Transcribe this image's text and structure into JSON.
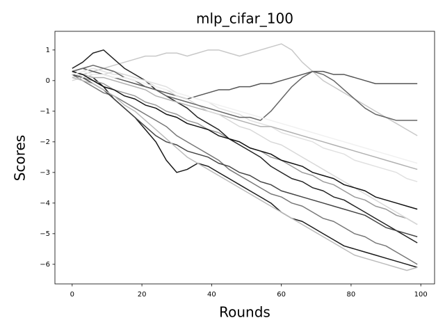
{
  "chart_data": {
    "type": "line",
    "title": "mlp_cifar_100",
    "x_label": "Rounds",
    "y_label": "Scores",
    "x": [
      0,
      3,
      6,
      9,
      12,
      15,
      18,
      21,
      24,
      27,
      30,
      33,
      36,
      39,
      42,
      45,
      48,
      51,
      54,
      57,
      60,
      63,
      66,
      69,
      72,
      75,
      78,
      81,
      84,
      87,
      90,
      93,
      96,
      99
    ],
    "xlim": [
      -4.95,
      103.95
    ],
    "xticks": [
      0,
      20,
      40,
      60,
      80,
      100
    ],
    "ylim": [
      -6.64,
      1.61
    ],
    "yticks": [
      {
        "value": -6,
        "label": "−6"
      },
      {
        "value": -5,
        "label": "−5"
      },
      {
        "value": -4,
        "label": "−4"
      },
      {
        "value": -3,
        "label": "−3"
      },
      {
        "value": -2,
        "label": "−2"
      },
      {
        "value": -1,
        "label": "−1"
      },
      0,
      1
    ],
    "grid": false,
    "series": [
      {
        "color": "#1a1a1a",
        "values": [
          0.3,
          0.2,
          0.1,
          -0.2,
          -0.6,
          -0.9,
          -1.2,
          -1.6,
          -2.0,
          -2.6,
          -3.0,
          -2.9,
          -2.7,
          -2.8,
          -3.0,
          -3.2,
          -3.4,
          -3.6,
          -3.8,
          -4.0,
          -4.3,
          -4.5,
          -4.6,
          -4.8,
          -5.0,
          -5.2,
          -5.4,
          -5.5,
          -5.6,
          -5.7,
          -5.8,
          -5.9,
          -6.0,
          -6.1
        ]
      },
      {
        "color": "#c8c8c8",
        "values": [
          0.1,
          0.2,
          0.3,
          0.4,
          0.5,
          0.6,
          0.7,
          0.8,
          0.8,
          0.9,
          0.9,
          0.8,
          0.9,
          1.0,
          1.0,
          0.9,
          0.8,
          0.9,
          1.0,
          1.1,
          1.2,
          1.0,
          0.6,
          0.3,
          0.0,
          -0.2,
          -0.4,
          -0.6,
          -0.8,
          -1.0,
          -1.2,
          -1.4,
          -1.6,
          -1.8
        ]
      },
      {
        "color": "#555555",
        "values": [
          0.3,
          0.4,
          0.3,
          0.2,
          0.1,
          0.0,
          -0.1,
          -0.2,
          -0.3,
          -0.4,
          -0.5,
          -0.6,
          -0.5,
          -0.4,
          -0.3,
          -0.3,
          -0.2,
          -0.2,
          -0.1,
          -0.1,
          0.0,
          0.1,
          0.2,
          0.3,
          0.3,
          0.2,
          0.2,
          0.1,
          0.0,
          -0.1,
          -0.1,
          -0.1,
          -0.1,
          -0.1
        ]
      },
      {
        "color": "#999999",
        "values": [
          0.2,
          0.1,
          0.0,
          -0.1,
          -0.3,
          -0.4,
          -0.5,
          -0.7,
          -0.8,
          -1.0,
          -1.1,
          -1.3,
          -1.4,
          -1.6,
          -1.7,
          -1.9,
          -2.0,
          -2.2,
          -2.3,
          -2.5,
          -2.6,
          -2.8,
          -3.0,
          -3.1,
          -3.3,
          -3.4,
          -3.6,
          -3.8,
          -3.9,
          -4.1,
          -4.2,
          -4.4,
          -4.5,
          -4.7
        ]
      },
      {
        "color": "#222222",
        "values": [
          0.4,
          0.6,
          0.9,
          1.0,
          0.7,
          0.4,
          0.2,
          0.0,
          -0.3,
          -0.5,
          -0.7,
          -0.9,
          -1.2,
          -1.4,
          -1.6,
          -1.9,
          -2.1,
          -2.3,
          -2.5,
          -2.8,
          -3.0,
          -3.2,
          -3.3,
          -3.5,
          -3.6,
          -3.8,
          -3.9,
          -4.1,
          -4.3,
          -4.5,
          -4.7,
          -4.9,
          -5.1,
          -5.3
        ]
      },
      {
        "color": "#e0e0e0",
        "values": [
          0.1,
          0.3,
          0.4,
          0.3,
          0.2,
          0.2,
          0.1,
          0.0,
          -0.1,
          -0.2,
          -0.4,
          -0.5,
          -0.6,
          -0.7,
          -0.9,
          -1.0,
          -1.1,
          -1.3,
          -1.4,
          -1.5,
          -1.7,
          -1.8,
          -1.9,
          -2.0,
          -2.2,
          -2.3,
          -2.4,
          -2.6,
          -2.7,
          -2.8,
          -2.9,
          -3.0,
          -3.2,
          -3.3
        ]
      },
      {
        "color": "#777777",
        "values": [
          0.2,
          0.0,
          -0.2,
          -0.4,
          -0.5,
          -0.7,
          -0.9,
          -1.1,
          -1.3,
          -1.5,
          -1.8,
          -2.0,
          -2.2,
          -2.4,
          -2.6,
          -2.9,
          -3.1,
          -3.3,
          -3.5,
          -3.7,
          -3.8,
          -4.0,
          -4.1,
          -4.3,
          -4.5,
          -4.6,
          -4.8,
          -5.0,
          -5.1,
          -5.3,
          -5.4,
          -5.6,
          -5.8,
          -6.0
        ]
      },
      {
        "color": "#b0b0b0",
        "values": [
          0.3,
          0.2,
          0.1,
          0.1,
          0.0,
          -0.1,
          -0.2,
          -0.3,
          -0.5,
          -0.6,
          -0.7,
          -0.8,
          -0.9,
          -1.0,
          -1.1,
          -1.2,
          -1.3,
          -1.4,
          -1.5,
          -1.5,
          -1.6,
          -1.7,
          -1.8,
          -1.9,
          -2.0,
          -2.1,
          -2.2,
          -2.3,
          -2.4,
          -2.5,
          -2.6,
          -2.7,
          -2.8,
          -2.9
        ]
      },
      {
        "color": "#444444",
        "values": [
          0.2,
          0.1,
          -0.1,
          -0.3,
          -0.6,
          -0.9,
          -1.2,
          -1.5,
          -1.8,
          -2.0,
          -2.1,
          -2.3,
          -2.4,
          -2.5,
          -2.7,
          -2.8,
          -3.0,
          -3.1,
          -3.3,
          -3.4,
          -3.6,
          -3.7,
          -3.8,
          -3.9,
          -4.0,
          -4.1,
          -4.2,
          -4.3,
          -4.4,
          -4.6,
          -4.8,
          -4.9,
          -5.0,
          -5.1
        ]
      },
      {
        "color": "#d8d8d8",
        "values": [
          0.0,
          0.1,
          0.2,
          0.2,
          0.3,
          0.2,
          0.1,
          0.0,
          -0.2,
          -0.3,
          -0.5,
          -0.6,
          -0.8,
          -1.0,
          -1.1,
          -1.3,
          -1.5,
          -1.6,
          -1.8,
          -2.0,
          -2.1,
          -2.3,
          -2.5,
          -2.7,
          -2.9,
          -3.1,
          -3.3,
          -3.5,
          -3.7,
          -3.9,
          -4.1,
          -4.3,
          -4.5,
          -4.7
        ]
      },
      {
        "color": "#666666",
        "values": [
          0.3,
          0.4,
          0.5,
          0.4,
          0.3,
          0.1,
          0.0,
          -0.2,
          -0.3,
          -0.5,
          -0.6,
          -0.7,
          -0.8,
          -0.9,
          -1.0,
          -1.1,
          -1.2,
          -1.2,
          -1.3,
          -1.0,
          -0.6,
          -0.2,
          0.1,
          0.3,
          0.2,
          0.0,
          -0.3,
          -0.6,
          -0.9,
          -1.1,
          -1.2,
          -1.3,
          -1.3,
          -1.3
        ]
      },
      {
        "color": "#bbbbbb",
        "values": [
          0.1,
          0.0,
          -0.1,
          -0.3,
          -0.5,
          -0.8,
          -1.0,
          -1.3,
          -1.6,
          -1.9,
          -2.2,
          -2.5,
          -2.7,
          -2.9,
          -3.1,
          -3.3,
          -3.5,
          -3.7,
          -3.9,
          -4.1,
          -4.3,
          -4.5,
          -4.7,
          -4.9,
          -5.1,
          -5.3,
          -5.5,
          -5.7,
          -5.8,
          -5.9,
          -6.0,
          -6.1,
          -6.2,
          -6.1
        ]
      },
      {
        "color": "#111111",
        "values": [
          0.3,
          0.2,
          0.0,
          -0.2,
          -0.3,
          -0.5,
          -0.6,
          -0.8,
          -0.9,
          -1.1,
          -1.2,
          -1.4,
          -1.5,
          -1.6,
          -1.8,
          -1.9,
          -2.0,
          -2.2,
          -2.3,
          -2.4,
          -2.6,
          -2.7,
          -2.8,
          -3.0,
          -3.1,
          -3.2,
          -3.4,
          -3.5,
          -3.6,
          -3.8,
          -3.9,
          -4.0,
          -4.1,
          -4.2
        ]
      },
      {
        "color": "#f0f0f0",
        "values": [
          0.2,
          0.3,
          0.2,
          0.2,
          0.1,
          0.1,
          0.0,
          -0.1,
          -0.2,
          -0.3,
          -0.4,
          -0.5,
          -0.6,
          -0.7,
          -0.8,
          -0.9,
          -1.0,
          -1.1,
          -1.2,
          -1.3,
          -1.4,
          -1.5,
          -1.6,
          -1.7,
          -1.8,
          -1.9,
          -2.0,
          -2.1,
          -2.2,
          -2.3,
          -2.4,
          -2.5,
          -2.6,
          -2.7
        ]
      }
    ]
  }
}
